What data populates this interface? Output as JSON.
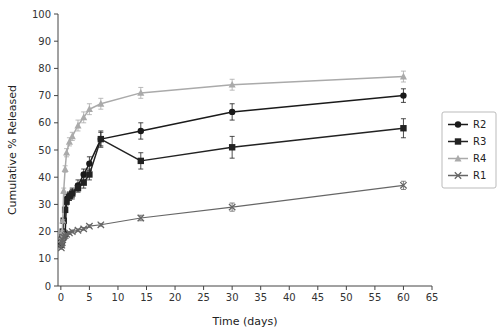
{
  "chart_data": {
    "type": "line",
    "x_label": "Time (days)",
    "y_label": "Cumulative % Released",
    "xlim": [
      -0.5,
      65
    ],
    "ylim": [
      0,
      100
    ],
    "xticks": [
      0,
      5,
      10,
      15,
      20,
      25,
      30,
      35,
      40,
      45,
      50,
      55,
      60,
      65
    ],
    "yticks": [
      0,
      10,
      20,
      30,
      40,
      50,
      60,
      70,
      80,
      90,
      100
    ],
    "grid": false,
    "legend": "right",
    "x": [
      0.08,
      0.17,
      0.25,
      0.33,
      0.5,
      0.75,
      1,
      1.5,
      2,
      3,
      4,
      5,
      7,
      14,
      30,
      60
    ],
    "series": [
      {
        "name": "R2",
        "color": "#1a1a1a",
        "marker": "circle",
        "values": [
          15,
          16,
          17,
          17.5,
          18,
          19,
          32,
          33,
          34,
          37,
          41,
          45,
          54,
          57,
          64,
          70
        ],
        "errors": [
          0.8,
          0.8,
          0.8,
          0.8,
          0.8,
          0.8,
          1.5,
          1.5,
          2,
          2,
          2,
          2.5,
          2.5,
          3,
          3,
          2.5
        ]
      },
      {
        "name": "R3",
        "color": "#222222",
        "marker": "square",
        "values": [
          16,
          17,
          18,
          20,
          24,
          28,
          31,
          33,
          34,
          36,
          38,
          41,
          54,
          46,
          51,
          58
        ],
        "errors": [
          0.8,
          0.8,
          0.8,
          0.8,
          0.8,
          1,
          1.2,
          1.5,
          1.5,
          1.5,
          2,
          2,
          3,
          3,
          4,
          3.5
        ]
      },
      {
        "name": "R4",
        "color": "#aaaaaa",
        "marker": "triangle",
        "values": [
          17,
          18,
          20,
          24,
          35,
          43,
          49,
          53,
          55,
          59,
          62,
          65,
          67,
          71,
          74,
          77
        ],
        "errors": [
          0.5,
          0.5,
          0.5,
          0.5,
          1,
          1.2,
          1.5,
          1.5,
          1.5,
          2,
          2,
          2,
          2,
          2,
          2,
          2
        ]
      },
      {
        "name": "R1",
        "color": "#666666",
        "marker": "x",
        "values": [
          14,
          15,
          16,
          17,
          18,
          18.5,
          19,
          19.5,
          20,
          20.5,
          21,
          22,
          22.5,
          25,
          29,
          37
        ],
        "errors": [
          0.5,
          0.5,
          0.5,
          0.5,
          0.5,
          0.5,
          0.5,
          0.5,
          0.5,
          0.5,
          0.5,
          0.5,
          0.5,
          1,
          1.5,
          1.5
        ]
      }
    ]
  }
}
